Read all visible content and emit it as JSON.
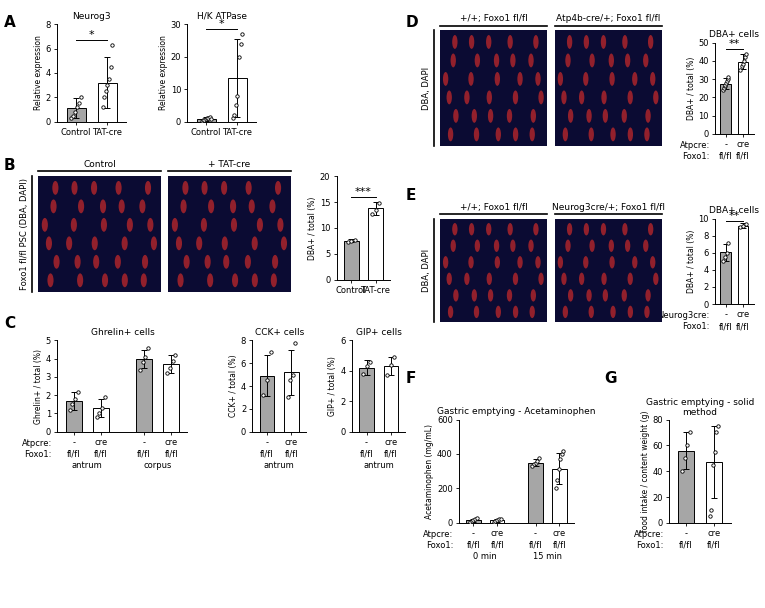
{
  "chart_data": [
    {
      "panel": "A",
      "type": "bar",
      "title": "Neurog3",
      "y_label": "Relative expression",
      "categories": [
        "Control",
        "TAT-cre"
      ],
      "values": [
        1.1,
        3.2
      ],
      "errors": [
        0.8,
        2.1
      ],
      "points": [
        [
          0.3,
          0.5,
          0.8,
          1.2,
          1.5,
          2.0
        ],
        [
          1.2,
          2.0,
          2.5,
          3.0,
          3.5,
          4.5,
          6.3
        ]
      ],
      "colors": [
        "#a6a6a6",
        "#ffffff"
      ],
      "ylim": [
        0,
        8
      ],
      "yticks": [
        0,
        2,
        4,
        6,
        8
      ],
      "significance": "*"
    },
    {
      "panel": "A",
      "type": "bar",
      "title": "H/K ATPase",
      "y_label": "Relative expression",
      "categories": [
        "Control",
        "TAT-cre"
      ],
      "values": [
        0.8,
        13.5
      ],
      "errors": [
        0.7,
        12.0
      ],
      "points": [
        [
          0.3,
          0.5,
          0.6,
          0.8,
          1.0,
          1.2,
          1.3,
          0.9
        ],
        [
          1,
          2,
          5,
          8,
          20,
          24,
          27
        ]
      ],
      "colors": [
        "#a6a6a6",
        "#ffffff"
      ],
      "ylim": [
        0,
        30
      ],
      "yticks": [
        0,
        10,
        20,
        30
      ],
      "significance": "*"
    },
    {
      "panel": "B",
      "type": "bar",
      "y_label": "DBA+ / total (%)",
      "categories": [
        "Control",
        "TAT-cre"
      ],
      "values": [
        7.5,
        13.8
      ],
      "errors": [
        0.3,
        1.2
      ],
      "points": [
        [
          7.3,
          7.5,
          7.6
        ],
        [
          12.8,
          13.5,
          14.8
        ]
      ],
      "colors": [
        "#a6a6a6",
        "#ffffff"
      ],
      "ylim": [
        0,
        20
      ],
      "yticks": [
        0,
        5,
        10,
        15,
        20
      ],
      "significance": "***"
    },
    {
      "panel": "C",
      "type": "bar",
      "title": "Ghrelin+ cells",
      "y_label": "Ghrelin+ / total (%)",
      "category_label": "Atpcre:",
      "categories": [
        "-",
        "cre",
        "-",
        "cre"
      ],
      "x_rows": [
        {
          "label": "Foxo1:",
          "values": [
            "fl/fl",
            "fl/fl",
            "fl/fl",
            "fl/fl"
          ]
        }
      ],
      "groups": [
        {
          "name": "antrum",
          "size": 2
        },
        {
          "name": "corpus",
          "size": 2
        }
      ],
      "values": [
        1.7,
        1.3,
        4.0,
        3.7
      ],
      "errors": [
        0.5,
        0.5,
        0.5,
        0.5
      ],
      "points": [
        [
          1.2,
          1.5,
          1.8,
          2.2
        ],
        [
          0.8,
          1.0,
          1.3,
          1.9
        ],
        [
          3.4,
          3.8,
          4.1,
          4.6
        ],
        [
          3.2,
          3.5,
          3.9,
          4.2
        ]
      ],
      "colors": [
        "#a6a6a6",
        "#ffffff",
        "#a6a6a6",
        "#ffffff"
      ],
      "ylim": [
        0,
        5
      ],
      "yticks": [
        0,
        1,
        2,
        3,
        4,
        5
      ]
    },
    {
      "panel": "C",
      "type": "bar",
      "title": "CCK+ cells",
      "y_label": "CCK+ / total (%)",
      "categories": [
        "-",
        "cre"
      ],
      "x_rows": [
        {
          "values": [
            "fl/fl",
            "fl/fl"
          ]
        }
      ],
      "groups": [
        {
          "name": "antrum",
          "size": 2
        }
      ],
      "values": [
        4.9,
        5.2
      ],
      "errors": [
        1.8,
        2.0
      ],
      "points": [
        [
          3.2,
          4.5,
          7.0
        ],
        [
          3.0,
          4.5,
          5.0,
          7.8
        ]
      ],
      "colors": [
        "#a6a6a6",
        "#ffffff"
      ],
      "ylim": [
        0,
        8
      ],
      "yticks": [
        0,
        2,
        4,
        6,
        8
      ]
    },
    {
      "panel": "C",
      "type": "bar",
      "title": "GIP+ cells",
      "y_label": "GIP+ / total (%)",
      "categories": [
        "-",
        "cre"
      ],
      "x_rows": [
        {
          "values": [
            "fl/fl",
            "fl/fl"
          ]
        }
      ],
      "groups": [
        {
          "name": "antrum",
          "size": 2
        }
      ],
      "values": [
        4.2,
        4.3
      ],
      "errors": [
        0.5,
        0.6
      ],
      "points": [
        [
          3.8,
          4.3,
          4.6
        ],
        [
          3.7,
          4.4,
          4.9
        ]
      ],
      "colors": [
        "#a6a6a6",
        "#ffffff"
      ],
      "ylim": [
        0,
        6
      ],
      "yticks": [
        0,
        2,
        4,
        6
      ]
    },
    {
      "panel": "D",
      "type": "bar",
      "title": "DBA+ cells",
      "y_label": "DBA+ / total (%)",
      "category_label": "Atpcre:",
      "categories": [
        "-",
        "cre"
      ],
      "x_rows": [
        {
          "label": "Foxo1:",
          "values": [
            "fl/fl",
            "fl/fl"
          ]
        }
      ],
      "values": [
        27.5,
        39.5
      ],
      "errors": [
        3.0,
        4.0
      ],
      "points": [
        [
          24,
          25,
          26,
          27,
          28,
          29,
          30,
          31
        ],
        [
          35,
          37,
          38,
          40,
          42,
          44
        ]
      ],
      "colors": [
        "#a6a6a6",
        "#ffffff"
      ],
      "ylim": [
        0,
        50
      ],
      "yticks": [
        0,
        10,
        20,
        30,
        40,
        50
      ],
      "significance": "**"
    },
    {
      "panel": "E",
      "type": "bar",
      "title": "DBA+ cells",
      "y_label": "DBA+ / total (%)",
      "category_label": "Neurog3cre:",
      "categories": [
        "-",
        "cre"
      ],
      "x_rows": [
        {
          "label": "Foxo1:",
          "values": [
            "fl/fl",
            "fl/fl"
          ]
        }
      ],
      "values": [
        6.1,
        9.2
      ],
      "errors": [
        1.0,
        0.3
      ],
      "points": [
        [
          5.0,
          5.5,
          6.0,
          7.2
        ],
        [
          9.0,
          9.2,
          9.4
        ]
      ],
      "colors": [
        "#a6a6a6",
        "#ffffff"
      ],
      "ylim": [
        0,
        10
      ],
      "yticks": [
        0,
        2,
        4,
        6,
        8,
        10
      ],
      "significance": "**"
    },
    {
      "panel": "F",
      "type": "bar",
      "title": "Gastric emptying - Acetaminophen",
      "y_label": "Acetaminophen (mg/mL)",
      "category_label": "Atpcre:",
      "categories": [
        "-",
        "cre",
        "-",
        "cre"
      ],
      "x_rows": [
        {
          "label": "Foxo1:",
          "values": [
            "fl/fl",
            "fl/fl",
            "fl/fl",
            "fl/fl"
          ]
        }
      ],
      "groups": [
        {
          "name": "0 min",
          "size": 2
        },
        {
          "name": "15 min",
          "size": 2
        }
      ],
      "values": [
        15,
        15,
        350,
        315
      ],
      "errors": [
        10,
        10,
        20,
        90
      ],
      "points": [
        [
          5,
          10,
          15,
          20,
          30
        ],
        [
          5,
          10,
          15,
          20,
          25
        ],
        [
          330,
          340,
          350,
          360,
          375
        ],
        [
          200,
          250,
          310,
          370,
          400,
          420
        ]
      ],
      "colors": [
        "#a6a6a6",
        "#ffffff",
        "#a6a6a6",
        "#ffffff"
      ],
      "ylim": [
        0,
        600
      ],
      "yticks": [
        0,
        200,
        400,
        600
      ]
    },
    {
      "panel": "G",
      "type": "bar",
      "title": "Gastric emptying - solid method",
      "y_label": "food intake / content weight (g)",
      "category_label": "Atpcre:",
      "categories": [
        "-",
        "cre"
      ],
      "x_rows": [
        {
          "label": "Foxo1:",
          "values": [
            "fl/fl",
            "fl/fl"
          ]
        }
      ],
      "values": [
        56,
        47
      ],
      "errors": [
        14,
        28
      ],
      "points": [
        [
          40,
          50,
          60,
          70
        ],
        [
          5,
          10,
          45,
          55,
          70,
          75
        ]
      ],
      "colors": [
        "#a6a6a6",
        "#ffffff"
      ],
      "ylim": [
        0,
        80
      ],
      "yticks": [
        0,
        20,
        40,
        60,
        80
      ]
    }
  ],
  "images": [
    {
      "panel": "B",
      "labels": [
        "Control",
        "+ TAT-cre"
      ],
      "side_label": "Foxo1 fl/fl PSC (DBA, DAPI)"
    },
    {
      "panel": "D",
      "labels": [
        "+/+; Foxo1 fl/fl",
        "Atp4b-cre/+; Foxo1 fl/fl"
      ],
      "side_label": "DBA, DAPI"
    },
    {
      "panel": "E",
      "labels": [
        "+/+; Foxo1 fl/fl",
        "Neurog3cre/+; Foxo1 fl/fl"
      ],
      "side_label": "DBA, DAPI"
    }
  ]
}
